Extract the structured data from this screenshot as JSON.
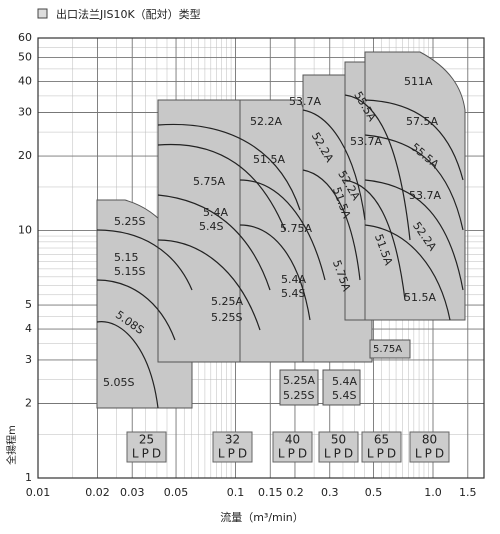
{
  "chart_data": {
    "type": "selection",
    "title": "出口法兰JIS10K（配対）类型",
    "x_label": "流量（m³/min）",
    "y_label": "全揚程m",
    "log_x": true,
    "log_y": true,
    "grid": true,
    "region_color": "#c8c8c8",
    "xlim": [
      0.01,
      1.5
    ],
    "ylim": [
      1,
      60
    ],
    "xticks": [
      0.01,
      0.02,
      0.03,
      0.05,
      0.1,
      0.15,
      0.2,
      0.3,
      0.5,
      {
        "value": 1,
        "label": "1.0"
      },
      1.5
    ],
    "yticks": [
      1,
      2,
      3,
      4,
      5,
      10,
      20,
      30,
      40,
      50,
      60
    ],
    "sizes": [
      {
        "size": "25",
        "unit": "LPD"
      },
      {
        "size": "32",
        "unit": "LPD"
      },
      {
        "size": "40",
        "unit": "LPD"
      },
      {
        "size": "50",
        "unit": "LPD"
      },
      {
        "size": "65",
        "unit": "LPD"
      },
      {
        "size": "80",
        "unit": "LPD"
      }
    ],
    "models": [
      "5.25S",
      "5.15",
      "5.15S",
      "5.08S",
      "5.05S",
      "5.75A",
      "5.4A",
      "5.4S",
      "5.25A",
      "5.25S",
      "52.2A",
      "51.5A",
      "53.7A",
      "5.75A",
      "5.4A",
      "5.4S",
      "5.25A",
      "5.25S",
      "52.2A",
      "55.5A",
      "53.7A",
      "52.2A",
      "51.5A",
      "5.75A",
      "5.4A",
      "5.4S",
      "51.5A",
      "5.75A",
      "511A",
      "57.5A",
      "55.5A",
      "53.7A",
      "52.2A",
      "51.5A"
    ]
  }
}
